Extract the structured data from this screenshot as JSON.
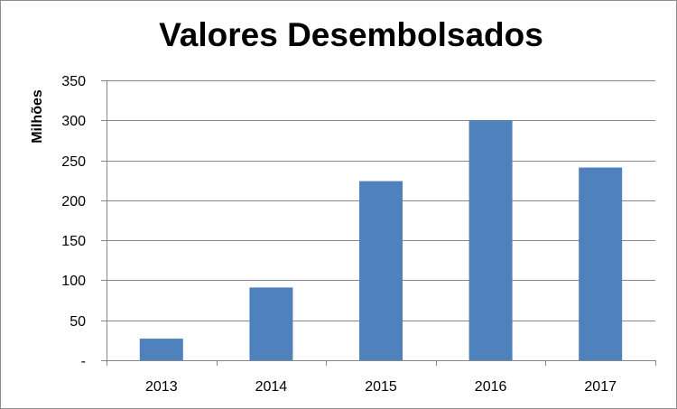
{
  "chart_data": {
    "type": "bar",
    "title": "Valores Desembolsados",
    "xlabel": "",
    "ylabel": "Milhões",
    "categories": [
      "2013",
      "2014",
      "2015",
      "2016",
      "2017"
    ],
    "values": [
      27,
      91,
      224,
      300,
      241
    ],
    "ylim": [
      0,
      350
    ],
    "yticks": [
      0,
      50,
      100,
      150,
      200,
      250,
      300,
      350
    ],
    "ytick_labels": [
      "-",
      "50",
      "100",
      "150",
      "200",
      "250",
      "300",
      "350"
    ],
    "grid": true,
    "legend": "none",
    "colors": {
      "bar": "#4f81bd"
    }
  }
}
